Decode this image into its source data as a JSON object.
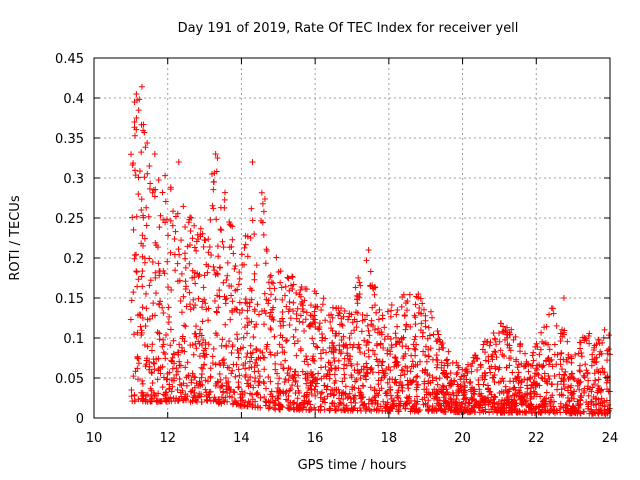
{
  "chart_data": {
    "type": "scatter",
    "title": "Day 191 of 2019, Rate Of TEC Index for receiver yell",
    "xlabel": "GPS time / hours",
    "ylabel": "ROTI / TECUs",
    "xlim": [
      10,
      24
    ],
    "ylim": [
      0,
      0.45
    ],
    "x_ticks": [
      10,
      12,
      14,
      16,
      18,
      20,
      22,
      24
    ],
    "y_ticks": [
      0,
      0.05,
      0.1,
      0.15,
      0.2,
      0.25,
      0.3,
      0.35,
      0.4,
      0.45
    ],
    "x_tick_labels": [
      "10",
      "12",
      "14",
      "16",
      "18",
      "20",
      "22",
      "24"
    ],
    "y_tick_labels": [
      "0",
      "0.05",
      "0.1",
      "0.15",
      "0.2",
      "0.25",
      "0.3",
      "0.35",
      "0.4",
      "0.45"
    ],
    "grid": true,
    "marker": "+",
    "series_color": "#ff0000",
    "envelope": [
      {
        "hour": 11.0,
        "roti": 0.33
      },
      {
        "hour": 11.2,
        "roti": 0.41
      },
      {
        "hour": 11.5,
        "roti": 0.33
      },
      {
        "hour": 12.0,
        "roti": 0.3
      },
      {
        "hour": 12.5,
        "roti": 0.26
      },
      {
        "hour": 13.0,
        "roti": 0.24
      },
      {
        "hour": 13.3,
        "roti": 0.33
      },
      {
        "hour": 14.0,
        "roti": 0.2
      },
      {
        "hour": 14.3,
        "roti": 0.32
      },
      {
        "hour": 14.7,
        "roti": 0.27
      },
      {
        "hour": 15.0,
        "roti": 0.2
      },
      {
        "hour": 15.5,
        "roti": 0.17
      },
      {
        "hour": 16.0,
        "roti": 0.16
      },
      {
        "hour": 16.5,
        "roti": 0.14
      },
      {
        "hour": 17.0,
        "roti": 0.15
      },
      {
        "hour": 17.4,
        "roti": 0.21
      },
      {
        "hour": 17.8,
        "roti": 0.13
      },
      {
        "hour": 18.4,
        "roti": 0.17
      },
      {
        "hour": 19.0,
        "roti": 0.15
      },
      {
        "hour": 19.5,
        "roti": 0.09
      },
      {
        "hour": 20.0,
        "roti": 0.06
      },
      {
        "hour": 20.5,
        "roti": 0.09
      },
      {
        "hour": 21.2,
        "roti": 0.14
      },
      {
        "hour": 21.8,
        "roti": 0.07
      },
      {
        "hour": 22.5,
        "roti": 0.15
      },
      {
        "hour": 23.0,
        "roti": 0.08
      },
      {
        "hour": 23.5,
        "roti": 0.12
      },
      {
        "hour": 24.0,
        "roti": 0.11
      }
    ],
    "floor": [
      {
        "hour": 11.0,
        "roti": 0.02
      },
      {
        "hour": 13.0,
        "roti": 0.02
      },
      {
        "hour": 15.0,
        "roti": 0.01
      },
      {
        "hour": 24.0,
        "roti": 0.005
      }
    ],
    "highlighted_points": [
      {
        "hour": 11.3,
        "roti": 0.414
      },
      {
        "hour": 11.15,
        "roti": 0.405
      },
      {
        "hour": 11.1,
        "roti": 0.395
      },
      {
        "hour": 11.15,
        "roti": 0.375
      },
      {
        "hour": 11.1,
        "roti": 0.37
      },
      {
        "hour": 11.65,
        "roti": 0.33
      },
      {
        "hour": 13.3,
        "roti": 0.33
      },
      {
        "hour": 13.35,
        "roti": 0.325
      },
      {
        "hour": 14.3,
        "roti": 0.32
      },
      {
        "hour": 12.3,
        "roti": 0.32
      },
      {
        "hour": 13.2,
        "roti": 0.305
      },
      {
        "hour": 17.45,
        "roti": 0.21
      },
      {
        "hour": 22.75,
        "roti": 0.15
      },
      {
        "hour": 22.45,
        "roti": 0.137
      }
    ]
  }
}
